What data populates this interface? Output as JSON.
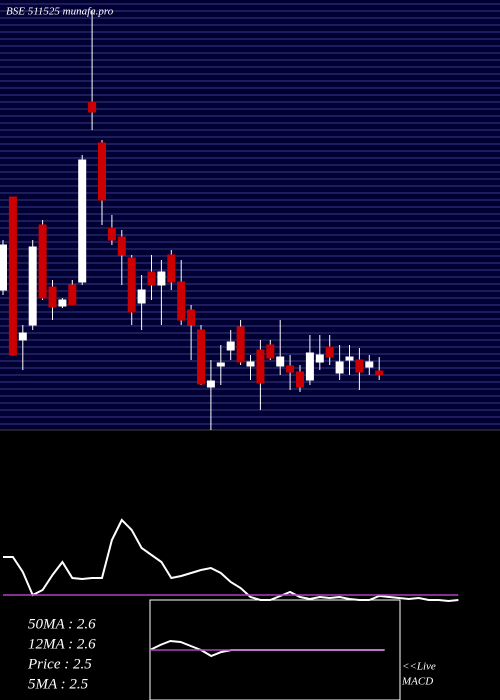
{
  "chart_data": [
    {
      "type": "candlestick",
      "title": "BSE 511525 munafa.pro",
      "up_color": "#ffffff",
      "down_color": "#cc0000",
      "open": [
        3.33,
        4.26,
        2.83,
        2.98,
        3.98,
        3.36,
        3.17,
        3.38,
        3.41,
        5.21,
        4.8,
        3.95,
        3.86,
        3.65,
        3.2,
        3.51,
        3.38,
        3.68,
        3.41,
        3.13,
        2.93,
        2.36,
        2.57,
        2.73,
        2.96,
        2.57,
        2.73,
        2.78,
        2.57,
        2.57,
        2.51,
        2.43,
        2.61,
        2.76,
        2.5,
        2.63,
        2.63,
        2.56,
        2.52
      ],
      "high": [
        3.83,
        4.26,
        2.98,
        3.83,
        4.03,
        3.43,
        3.25,
        3.43,
        4.68,
        6.13,
        4.83,
        4.08,
        3.93,
        3.68,
        3.48,
        3.68,
        3.63,
        3.73,
        3.63,
        3.18,
        2.98,
        2.63,
        2.78,
        2.93,
        3.03,
        2.68,
        2.83,
        2.83,
        3.03,
        2.68,
        2.58,
        2.88,
        2.88,
        2.88,
        2.78,
        2.78,
        2.75,
        2.68,
        2.66
      ],
      "low": [
        3.28,
        2.68,
        2.53,
        2.93,
        3.23,
        3.03,
        3.15,
        3.18,
        3.38,
        4.93,
        3.98,
        3.78,
        3.38,
        2.98,
        2.93,
        3.23,
        2.98,
        3.33,
        2.98,
        2.63,
        2.38,
        1.93,
        2.38,
        2.63,
        2.58,
        2.43,
        2.13,
        2.63,
        2.48,
        2.33,
        2.31,
        2.38,
        2.53,
        2.58,
        2.43,
        2.48,
        2.33,
        2.48,
        2.43
      ],
      "close": [
        3.78,
        2.68,
        2.9,
        3.76,
        3.25,
        3.16,
        3.23,
        3.18,
        4.63,
        5.11,
        4.23,
        3.83,
        3.68,
        3.11,
        3.33,
        3.38,
        3.51,
        3.41,
        3.03,
        2.98,
        2.39,
        2.42,
        2.6,
        2.81,
        2.61,
        2.61,
        2.4,
        2.65,
        2.66,
        2.51,
        2.36,
        2.7,
        2.68,
        2.66,
        2.61,
        2.66,
        2.51,
        2.61,
        2.48
      ],
      "ylim": [
        1.93,
        6.23
      ]
    },
    {
      "type": "line",
      "ylim": [
        -5,
        160
      ],
      "series": [
        {
          "color": "#ffffff",
          "values": [
            43,
            43,
            28,
            5,
            10,
            25,
            38,
            22,
            21,
            22,
            22,
            60,
            80,
            70,
            52,
            45,
            38,
            22,
            24,
            27,
            30,
            32,
            27,
            18,
            12,
            3,
            0,
            0,
            4,
            8,
            3,
            1,
            3,
            2,
            3,
            1,
            0,
            0,
            4,
            3,
            2,
            1,
            2,
            0,
            0,
            -1,
            0
          ]
        },
        {
          "color": "#b040c0",
          "values": [
            5,
            5,
            5,
            5,
            5,
            5,
            5,
            5,
            5,
            5,
            5,
            5,
            5,
            5,
            5,
            5,
            5,
            5,
            5,
            5,
            5,
            5,
            5,
            5,
            5,
            5,
            5,
            5,
            5,
            5,
            5,
            5,
            5,
            5,
            5,
            5,
            5,
            5,
            5,
            5,
            5,
            5,
            5,
            5,
            5,
            5,
            5
          ]
        }
      ],
      "annotations": [
        "50MA : 2.6",
        "12MA : 2.6",
        "Price  : 2.5",
        "5MA : 2.5"
      ]
    },
    {
      "type": "line",
      "ylim": [
        0,
        100
      ],
      "label_1": "<<Live",
      "label_2": "MACD",
      "series": [
        {
          "color": "#ffffff",
          "values": [
            50,
            55,
            59,
            58,
            54,
            50,
            44,
            48,
            50,
            50,
            50,
            50,
            50,
            50,
            50,
            50,
            50,
            50,
            50,
            50,
            50,
            50,
            50,
            50
          ]
        },
        {
          "color": "#b040c0",
          "values": [
            50,
            50,
            50,
            50,
            50,
            50,
            50,
            50,
            50,
            50,
            50,
            50,
            50,
            50,
            50,
            50,
            50,
            50,
            50,
            50,
            50,
            50,
            50,
            50
          ]
        }
      ]
    }
  ]
}
